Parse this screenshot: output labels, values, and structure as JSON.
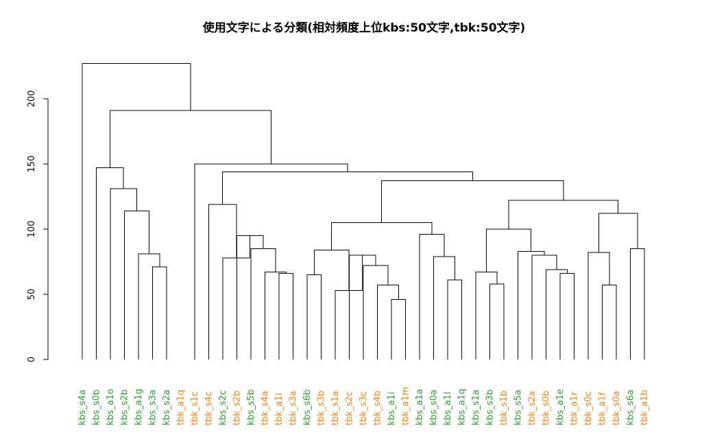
{
  "chart_data": {
    "type": "dendrogram",
    "title": "使用文字による分類(相対頻度上位kbs:50文字,tbk:50文字)",
    "xlabel": "",
    "ylabel": "",
    "ylim": [
      0,
      230
    ],
    "yticks": [
      0,
      50,
      100,
      150,
      200
    ],
    "colors": {
      "kbs": "#2ca02c",
      "tbk": "#ff7f0e",
      "line": "#000000"
    },
    "leaves": [
      {
        "label": "kbs_s4a",
        "group": "kbs"
      },
      {
        "label": "kbs_s0b",
        "group": "kbs"
      },
      {
        "label": "kbs_a1o",
        "group": "kbs"
      },
      {
        "label": "kbs_s2b",
        "group": "kbs"
      },
      {
        "label": "kbs_a1g",
        "group": "kbs"
      },
      {
        "label": "kbs_s3a",
        "group": "kbs"
      },
      {
        "label": "kbs_s2a",
        "group": "kbs"
      },
      {
        "label": "tbk_a1q",
        "group": "tbk"
      },
      {
        "label": "tbk_s1c",
        "group": "tbk"
      },
      {
        "label": "tbk_s4c",
        "group": "tbk"
      },
      {
        "label": "kbs_s2c",
        "group": "kbs"
      },
      {
        "label": "tbk_s2b",
        "group": "tbk"
      },
      {
        "label": "kbs_s5b",
        "group": "kbs"
      },
      {
        "label": "tbk_s4a",
        "group": "tbk"
      },
      {
        "label": "tbk_a1i",
        "group": "tbk"
      },
      {
        "label": "tbk_s3a",
        "group": "tbk"
      },
      {
        "label": "kbs_s6b",
        "group": "kbs"
      },
      {
        "label": "tbk_s3b",
        "group": "tbk"
      },
      {
        "label": "tbk_s1a",
        "group": "tbk"
      },
      {
        "label": "tbk_s2c",
        "group": "tbk"
      },
      {
        "label": "tbk_s3c",
        "group": "tbk"
      },
      {
        "label": "tbk_s4b",
        "group": "tbk"
      },
      {
        "label": "kbs_a1i",
        "group": "kbs"
      },
      {
        "label": "tbk_a1m",
        "group": "tbk"
      },
      {
        "label": "kbs_a1a",
        "group": "kbs"
      },
      {
        "label": "kbs_s0a",
        "group": "kbs"
      },
      {
        "label": "kbs_a1l",
        "group": "kbs"
      },
      {
        "label": "kbs_a1q",
        "group": "kbs"
      },
      {
        "label": "kbs_s1a",
        "group": "kbs"
      },
      {
        "label": "kbs_s3b",
        "group": "kbs"
      },
      {
        "label": "tbk_s1b",
        "group": "tbk"
      },
      {
        "label": "kbs_s5a",
        "group": "kbs"
      },
      {
        "label": "tbk_s2a",
        "group": "tbk"
      },
      {
        "label": "tbk_s0b",
        "group": "tbk"
      },
      {
        "label": "kbs_a1e",
        "group": "kbs"
      },
      {
        "label": "tbk_a1r",
        "group": "tbk"
      },
      {
        "label": "tbk_s0c",
        "group": "tbk"
      },
      {
        "label": "tbk_a1f",
        "group": "tbk"
      },
      {
        "label": "tbk_s0a",
        "group": "tbk"
      },
      {
        "label": "kbs_s6a",
        "group": "kbs"
      },
      {
        "label": "tbk_a1b",
        "group": "tbk"
      }
    ],
    "merges": [
      {
        "a": "L5",
        "b": "L6",
        "height": 71
      },
      {
        "a": "L4",
        "b": "M0",
        "height": 81
      },
      {
        "a": "L3",
        "b": "M1",
        "height": 114
      },
      {
        "a": "L2",
        "b": "L3x",
        "height": 0
      },
      {
        "a": "L14",
        "b": "L15",
        "height": 66
      },
      {
        "a": "L13",
        "b": "M4",
        "height": 67
      },
      {
        "a": "L12",
        "b": "M5",
        "height": 85
      },
      {
        "a": "L11",
        "b": "M6",
        "height": 95
      },
      {
        "a": "L10",
        "b": "L11x",
        "height": 0
      },
      {
        "a": "L9",
        "b": "M8",
        "height": 119
      },
      {
        "a": "L22",
        "b": "L23",
        "height": 46
      },
      {
        "a": "L21",
        "b": "M10",
        "height": 57
      },
      {
        "a": "L20",
        "b": "M11",
        "height": 72
      },
      {
        "a": "L19",
        "b": "M12",
        "height": 80
      },
      {
        "a": "L18",
        "b": "M13",
        "height": 53
      },
      {
        "a": "L16",
        "b": "L17",
        "height": 65
      },
      {
        "a": "M15",
        "b": "M14",
        "height": 84
      },
      {
        "a": "L26",
        "b": "L27",
        "height": 61
      },
      {
        "a": "L25",
        "b": "M17",
        "height": 79
      },
      {
        "a": "L24",
        "b": "M18",
        "height": 96
      },
      {
        "a": "M16",
        "b": "M19",
        "height": 105
      },
      {
        "a": "L29",
        "b": "L30",
        "height": 58
      },
      {
        "a": "L28",
        "b": "M21",
        "height": 67
      },
      {
        "a": "L34",
        "b": "L35",
        "height": 66
      },
      {
        "a": "L33",
        "b": "M23",
        "height": 69
      },
      {
        "a": "L32",
        "b": "M24",
        "height": 80
      },
      {
        "a": "L31",
        "b": "M25",
        "height": 83
      },
      {
        "a": "M22",
        "b": "M26",
        "height": 100
      },
      {
        "a": "L37",
        "b": "L38",
        "height": 57
      },
      {
        "a": "L36",
        "b": "M28",
        "height": 82
      },
      {
        "a": "L39",
        "b": "L40",
        "height": 85
      },
      {
        "a": "M29",
        "b": "M30",
        "height": 112
      },
      {
        "a": "M27",
        "b": "M31",
        "height": 122
      },
      {
        "a": "M20",
        "b": "M32",
        "height": 137
      },
      {
        "a": "M9",
        "b": "M33",
        "height": 144
      },
      {
        "a": "L8",
        "b": "M34",
        "height": 150
      },
      {
        "a": "L1",
        "b": "M3",
        "height": 147
      },
      {
        "a": "M36",
        "b": "M35",
        "height": 191
      },
      {
        "a": "L0",
        "b": "M37",
        "height": 227
      }
    ]
  }
}
